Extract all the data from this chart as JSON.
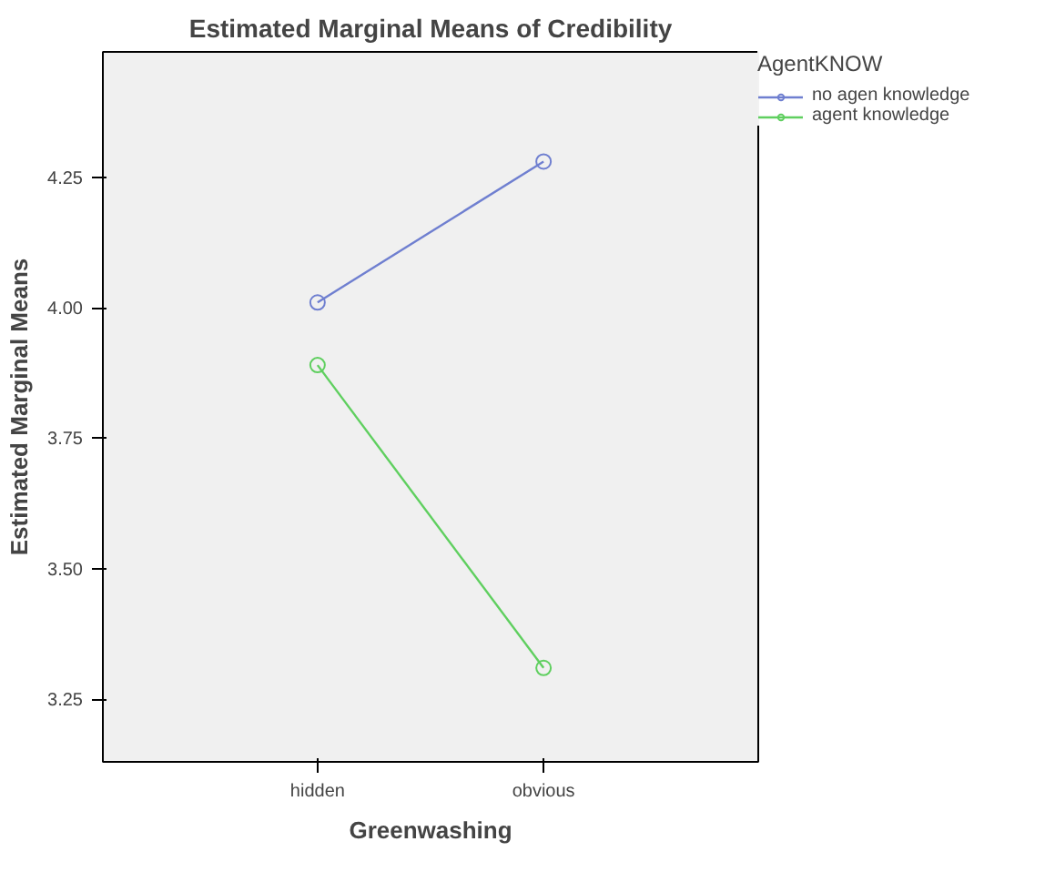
{
  "chart_data": {
    "type": "line",
    "title": "Estimated Marginal Means of Credibility",
    "xlabel": "Greenwashing",
    "ylabel": "Estimated Marginal Means",
    "legend_title": "AgentKNOW",
    "categories": [
      "hidden",
      "obvious"
    ],
    "series": [
      {
        "name": "no agen knowledge",
        "color": "#6f7fd0",
        "values": [
          4.01,
          4.28
        ]
      },
      {
        "name": "agent knowledge",
        "color": "#5fcf5f",
        "values": [
          3.89,
          3.31
        ]
      }
    ],
    "ylim": [
      3.13,
      4.49
    ],
    "yticks": [
      3.25,
      {
        "value": 3.5,
        "label": "3.50"
      },
      3.75,
      {
        "value": 4.0,
        "label": "4.00"
      },
      4.25
    ],
    "legend": "right",
    "marker": "circle",
    "line_style": "solid"
  }
}
